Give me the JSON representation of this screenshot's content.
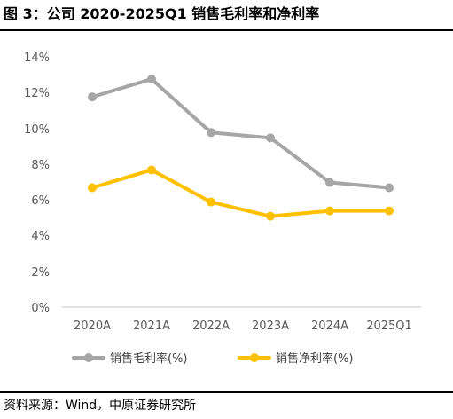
{
  "figure": {
    "title": "图 3：公司 2020-2025Q1 销售毛利率和净利率",
    "source": "资料来源：Wind，中原证券研究所"
  },
  "chart_data": {
    "type": "line",
    "categories": [
      "2020A",
      "2021A",
      "2022A",
      "2023A",
      "2024A",
      "2025Q1"
    ],
    "series": [
      {
        "name": "销售毛利率(%)",
        "color": "#A6A6A6",
        "values": [
          11.8,
          12.8,
          9.8,
          9.5,
          7.0,
          6.7
        ]
      },
      {
        "name": "销售净利率(%)",
        "color": "#FFC000",
        "values": [
          6.7,
          7.7,
          5.9,
          5.1,
          5.4,
          5.4
        ]
      }
    ],
    "yticks": [
      "0%",
      "2%",
      "4%",
      "6%",
      "8%",
      "10%",
      "12%",
      "14%"
    ],
    "ylim": [
      0,
      14
    ],
    "grid": false,
    "legend_position": "bottom"
  }
}
